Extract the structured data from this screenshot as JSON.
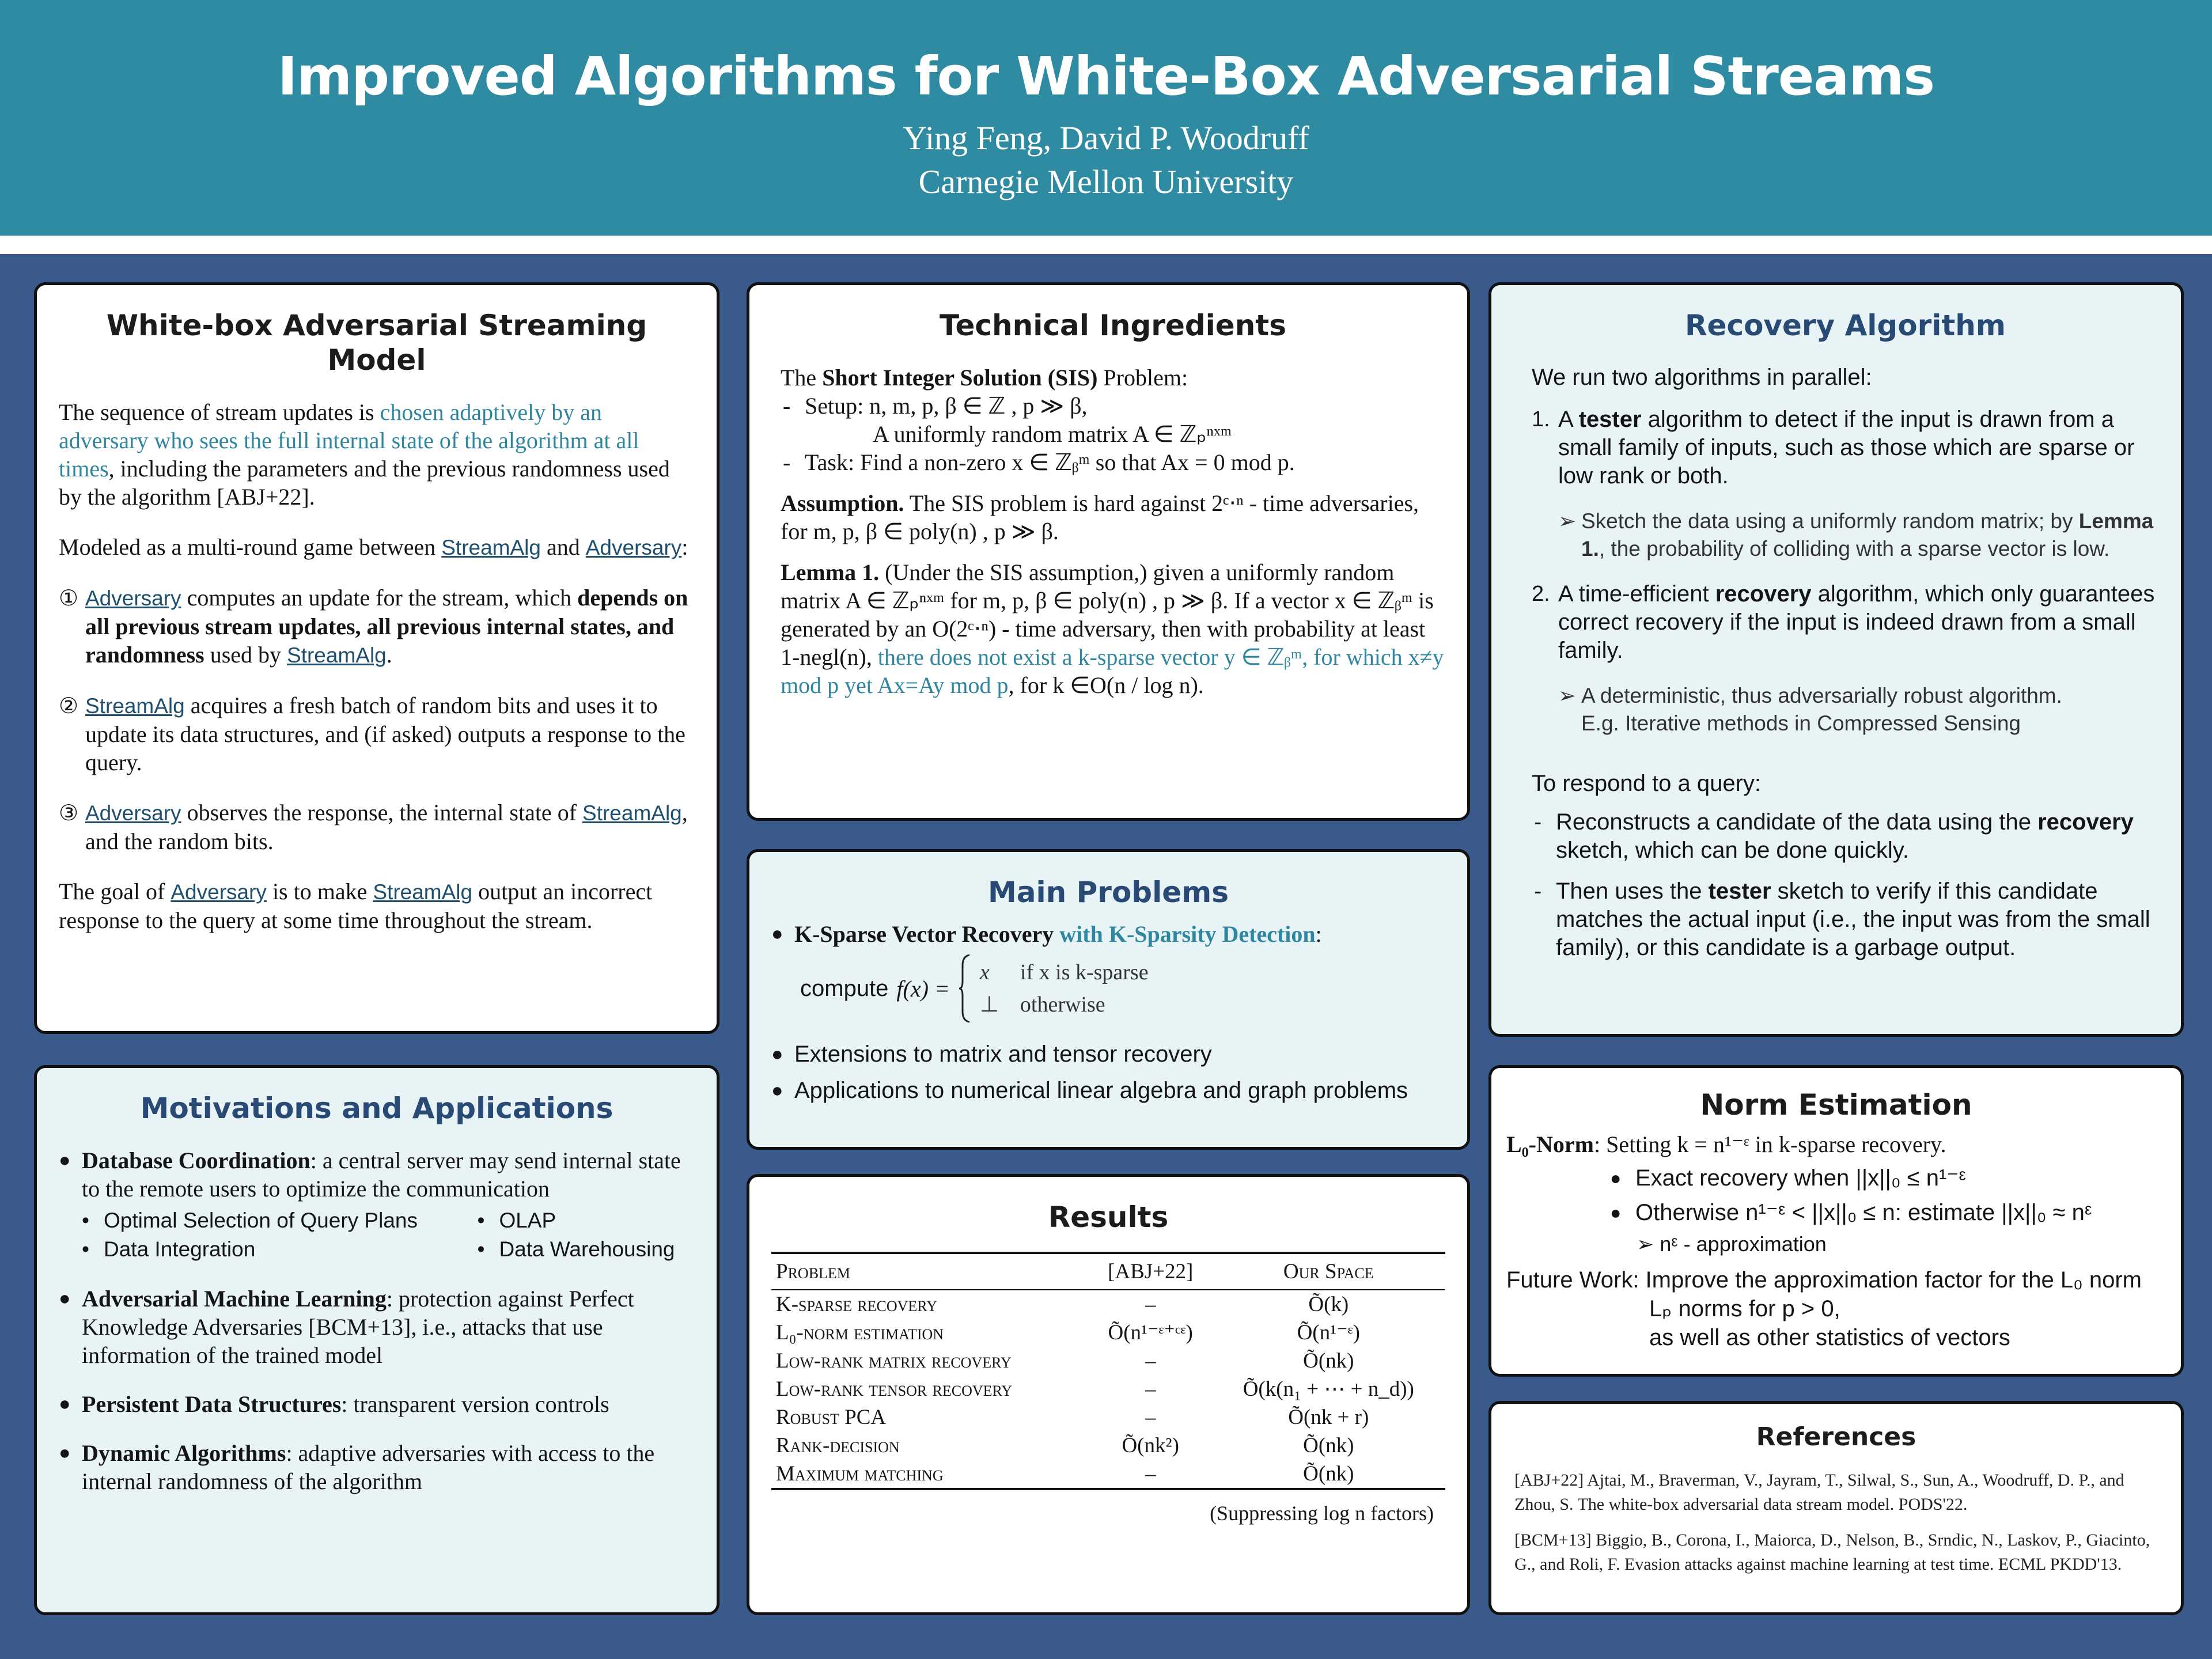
{
  "header": {
    "title": "Improved Algorithms for White-Box Adversarial Streams",
    "authors": "Ying Feng,  David P. Woodruff",
    "affiliation": "Carnegie Mellon University"
  },
  "model": {
    "title": "White-box Adversarial Streaming Model",
    "p1": [
      "The sequence of stream updates is ",
      "chosen adaptively by an adversary who sees the full internal state of the algorithm at all times",
      ", including the parameters and the previous randomness used by the algorithm [ABJ+22]."
    ],
    "p2": [
      "Modeled as a multi-round game between ",
      "StreamAlg",
      " and ",
      "Adversary",
      ":"
    ],
    "steps": [
      [
        "①",
        "Adversary",
        " computes an update for the stream, which ",
        "depends on all previous stream updates, all previous internal states, and randomness",
        " used by ",
        "StreamAlg",
        "."
      ],
      [
        "②",
        "StreamAlg",
        " acquires a fresh batch of random bits and uses it to update its data structures, and (if asked) outputs a response to the query."
      ],
      [
        "③",
        "Adversary",
        " observes the response, the internal state of ",
        "StreamAlg",
        ", and the random bits."
      ]
    ],
    "goal": [
      "The goal of ",
      "Adversary",
      " is to make ",
      "StreamAlg",
      " output an incorrect response to the query at some time throughout the stream."
    ]
  },
  "motivations": {
    "title": "Motivations and Applications",
    "items": [
      [
        "Database Coordination",
        ": a central server may send internal state to the remote users to optimize the communication"
      ],
      [
        "Adversarial Machine Learning",
        ": protection against Perfect Knowledge Adversaries [BCM+13], i.e., attacks that use information of the trained model"
      ],
      [
        "Persistent Data Structures",
        ": transparent version controls"
      ],
      [
        "Dynamic Algorithms",
        ": adaptive adversaries with access to the internal randomness of the algorithm"
      ]
    ],
    "subitems": [
      "Optimal Selection of Query Plans",
      "OLAP",
      "Data Integration",
      "Data Warehousing"
    ]
  },
  "technical": {
    "title": "Technical Ingredients",
    "sis": [
      "The ",
      "Short Integer Solution (SIS)",
      " Problem:"
    ],
    "setup": "Setup: n, m, p, β ∈ ℤ , p ≫ β,",
    "setup_matrix": "A uniformly random matrix A ∈ ℤₚⁿˣᵐ",
    "task": "Task: Find a non-zero x ∈ ℤᵦᵐ so that Ax = 0 mod p.",
    "assumption": [
      "Assumption.",
      " The SIS problem is hard against 2ᶜ⋅ⁿ - time adversaries, for m, p, β ∈ poly(n) , p ≫ β."
    ],
    "lemma": [
      "Lemma 1.",
      " (Under the SIS assumption,) given a uniformly random matrix A ∈ ℤₚⁿˣᵐ  for m, p, β ∈ poly(n) , p ≫ β. If a vector x ∈ ℤᵦᵐ  is generated by an O(2ᶜ⋅ⁿ) - time adversary, then with probability at least 1-negl(n), ",
      "there does not exist a k-sparse vector y ∈ ℤᵦᵐ, for which x≠y mod p  yet Ax=Ay mod p",
      ", for k ∈O(n / log n)."
    ]
  },
  "problems": {
    "title": "Main Problems",
    "first": [
      "K-Sparse Vector Recovery",
      " with K-Sparsity Detection",
      ":"
    ],
    "compute": "compute",
    "function": "f(x) =",
    "cases": [
      [
        "x",
        "if x is k-sparse"
      ],
      [
        "⊥",
        "otherwise"
      ]
    ],
    "others": [
      "Extensions to matrix and tensor recovery",
      "Applications to numerical linear algebra and graph problems"
    ]
  },
  "results": {
    "title": "Results",
    "header": [
      "Problem",
      "[ABJ+22]",
      "Our Space"
    ],
    "rows": [
      [
        "K-sparse recovery",
        "–",
        "Õ(k)"
      ],
      [
        "L₀-norm estimation",
        "Õ(n¹⁻ᵋ⁺ᶜᵋ)",
        "Õ(n¹⁻ᵋ)"
      ],
      [
        "Low-rank matrix recovery",
        "–",
        "Õ(nk)"
      ],
      [
        "Low-rank tensor recovery",
        "–",
        "Õ(k(n₁ + ⋯ + n_d))"
      ],
      [
        "Robust PCA",
        "–",
        "Õ(nk + r)"
      ],
      [
        "Rank-decision",
        "Õ(nk²)",
        "Õ(nk)"
      ],
      [
        "Maximum matching",
        "–",
        "Õ(nk)"
      ]
    ],
    "note": "(Suppressing log n factors)"
  },
  "recovery": {
    "title": "Recovery Algorithm",
    "intro": "We run two algorithms in parallel:",
    "items": [
      [
        "1.",
        "A ",
        "tester",
        " algorithm to detect if the input is drawn from a small family of inputs, such as those which are sparse or low rank or both."
      ],
      [
        "2.",
        "A time-efficient ",
        "recovery",
        " algorithm, which only guarantees correct recovery if the input is indeed drawn from a small family."
      ]
    ],
    "notes": [
      [
        "➢",
        "Sketch the data using a uniformly random matrix; by ",
        "Lemma 1.",
        ", the probability of colliding with a sparse vector is low."
      ],
      [
        "➢",
        "A deterministic, thus adversarially robust algorithm.",
        "E.g. Iterative methods in Compressed Sensing"
      ]
    ],
    "respond": "To respond to a query:",
    "steps": [
      [
        "Reconstructs a candidate of the data using the ",
        "recovery",
        " sketch, which can be done quickly."
      ],
      [
        "Then uses the ",
        "tester",
        " sketch to verify if this candidate matches the actual input (i.e., the input was from the small family), or this candidate is a garbage output."
      ]
    ]
  },
  "norm": {
    "title": "Norm Estimation",
    "l0": [
      "L₀-Norm",
      ": Setting k = n¹⁻ᵋ in k-sparse recovery."
    ],
    "bullets": [
      "Exact recovery when ||x||₀ ≤ n¹⁻ᵋ",
      "Otherwise n¹⁻ᵋ < ||x||₀ ≤ n: estimate ||x||₀ ≈ nᵋ"
    ],
    "sub": [
      "➢",
      "nᵋ - approximation"
    ],
    "future": [
      "Future Work:",
      " Improve the approximation factor for the L₀ norm",
      "Lₚ norms for p > 0,",
      "as well as other statistics of vectors"
    ]
  },
  "references": {
    "title": "References",
    "items": [
      "[ABJ+22] Ajtai, M., Braverman, V., Jayram, T., Silwal, S., Sun, A., Woodruff, D. P., and Zhou, S. The white-box adversarial data stream model. PODS'22.",
      "[BCM+13] Biggio, B., Corona, I., Maiorca, D., Nelson, B., Srndic, N., Laskov, P., Giacinto, G., and Roli, F. Evasion attacks against machine learning at test time. ECML PKDD'13."
    ]
  }
}
